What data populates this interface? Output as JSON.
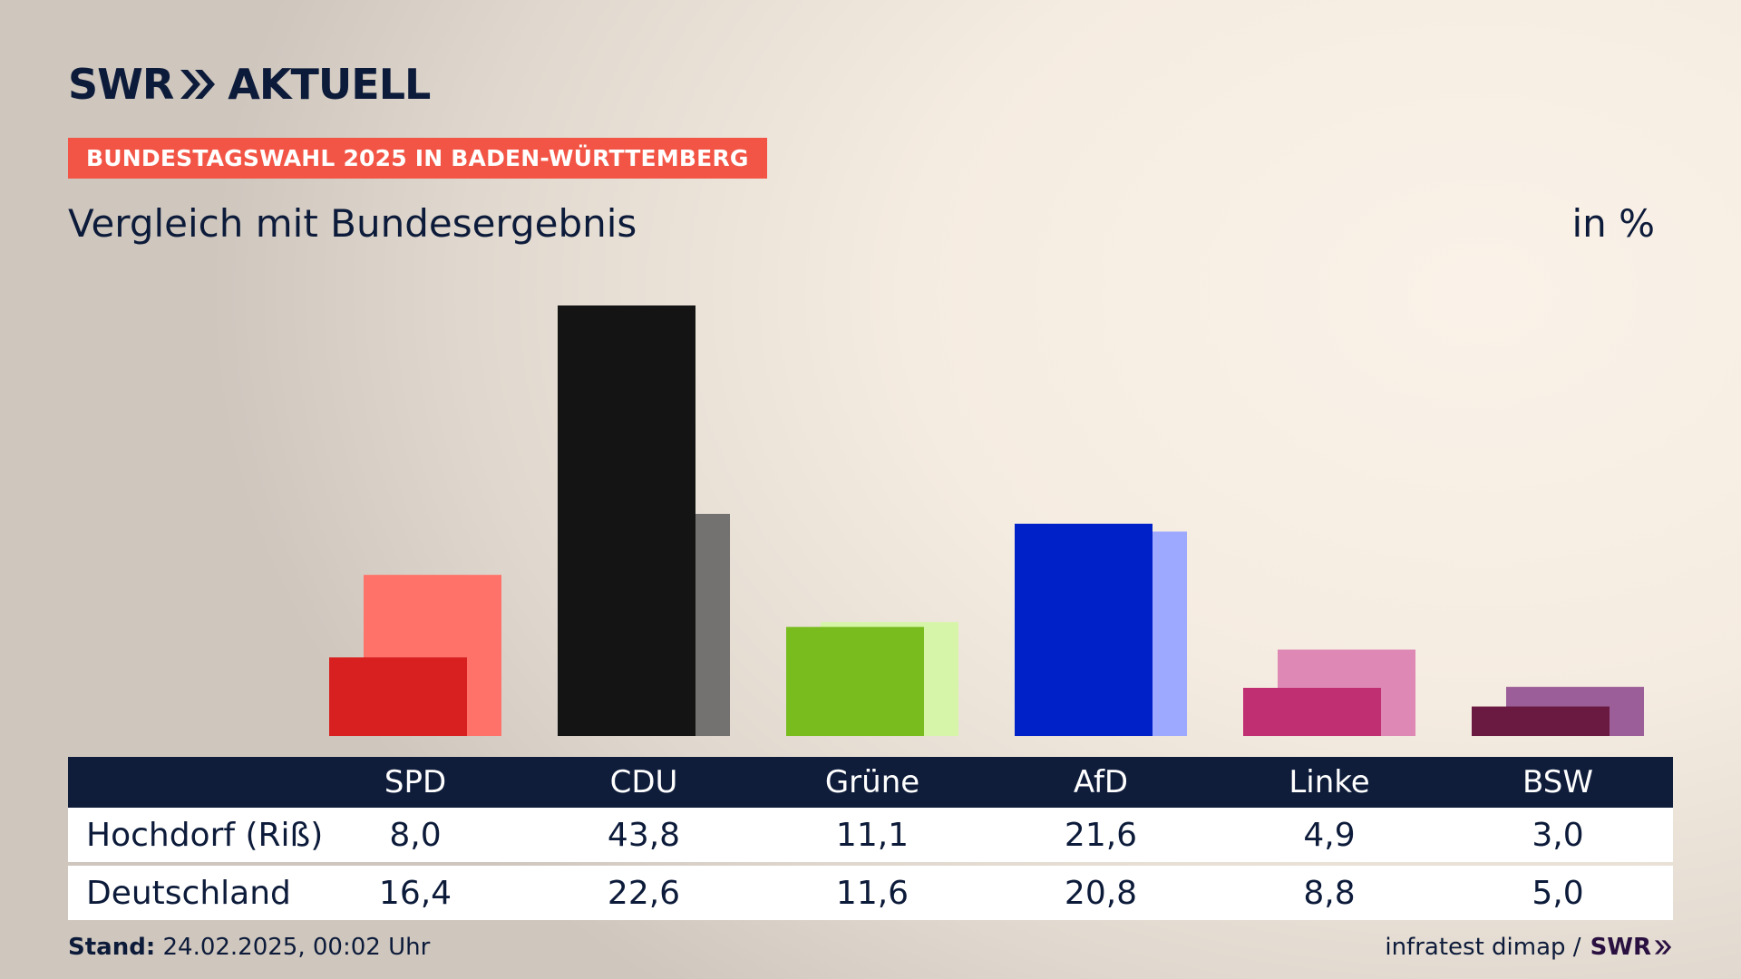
{
  "brand": {
    "logo_text_left": "SWR",
    "logo_text_right": "AKTUELL",
    "color": "#0d1b3a"
  },
  "header": {
    "election_tag": "BUNDESTAGSWAHL 2025 IN BADEN-WÜRTTEMBERG",
    "election_tag_color": "#f25545",
    "subtitle": "Vergleich mit Bundesergebnis",
    "unit": "in %"
  },
  "table": {
    "row_labels": [
      "Hochdorf (Riß)",
      "Deutschland"
    ]
  },
  "chart_data": {
    "type": "bar",
    "categories": [
      "SPD",
      "CDU",
      "Grüne",
      "AfD",
      "Linke",
      "BSW"
    ],
    "series": [
      {
        "name": "Hochdorf (Riß)",
        "values": [
          8.0,
          43.8,
          11.1,
          21.6,
          4.9,
          3.0
        ],
        "display": [
          "8,0",
          "43,8",
          "11,1",
          "21,6",
          "4,9",
          "3,0"
        ],
        "colors": [
          "#d7201f",
          "#141414",
          "#78bc1e",
          "#0020c8",
          "#bf2f72",
          "#6a1a40"
        ]
      },
      {
        "name": "Deutschland",
        "values": [
          16.4,
          22.6,
          11.6,
          20.8,
          8.8,
          5.0
        ],
        "display": [
          "16,4",
          "22,6",
          "11,6",
          "20,8",
          "8,8",
          "5,0"
        ],
        "colors": [
          "#ff7269",
          "#737271",
          "#d6f5a9",
          "#9da8ff",
          "#de88b6",
          "#9b5e98"
        ]
      }
    ],
    "ylim": [
      0,
      45
    ],
    "grid": false,
    "legend": "none"
  },
  "footer": {
    "stand_label": "Stand:",
    "stand_value": "24.02.2025, 00:02 Uhr",
    "source": "infratest dimap /",
    "source_logo": "SWR"
  }
}
